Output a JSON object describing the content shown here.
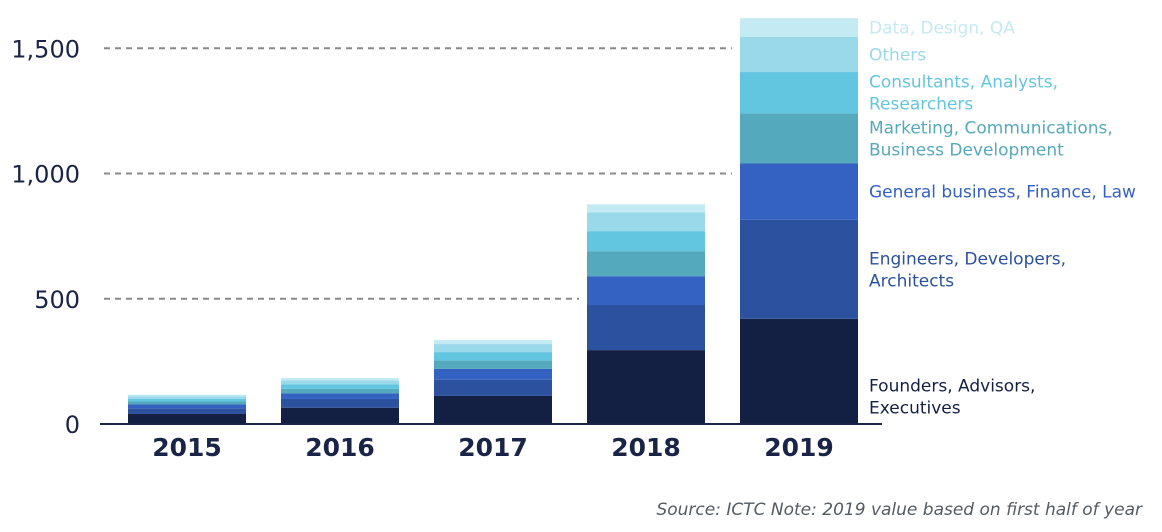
{
  "chart_data": {
    "type": "bar",
    "stacked": true,
    "categories": [
      "2015",
      "2016",
      "2017",
      "2018",
      "2019"
    ],
    "ylim": [
      0,
      1600
    ],
    "yticks": [
      {
        "value": 0,
        "label": "0"
      },
      {
        "value": 500,
        "label": "500"
      },
      {
        "value": 1000,
        "label": "1,000"
      },
      {
        "value": 1500,
        "label": "1,500"
      }
    ],
    "grid": "dashed horizontal lines at 500, 1,000 and 1,500",
    "legend_position": "right of the 2019 bar",
    "series": [
      {
        "name": "Founders, Advisors, Executives",
        "legend_lines": [
          "Founders, Advisors,",
          "Executives"
        ],
        "color": "#141f44",
        "values": [
          40,
          65,
          112,
          295,
          420
        ]
      },
      {
        "name": "Engineers, Developers, Architects",
        "legend_lines": [
          "Engineers, Developers,",
          "Architects"
        ],
        "color": "#2c519e",
        "values": [
          23,
          35,
          65,
          180,
          395
        ]
      },
      {
        "name": "General business, Finance, Law",
        "legend_lines": [
          "General business, Finance, Law"
        ],
        "color": "#3462c2",
        "values": [
          15,
          22,
          43,
          115,
          225
        ]
      },
      {
        "name": "Marketing, Communications, Business Development",
        "legend_lines": [
          "Marketing, Communications,",
          "Business Development"
        ],
        "color": "#55a9bc",
        "values": [
          12,
          18,
          34,
          100,
          200
        ]
      },
      {
        "name": "Consultants, Analysts, Researchers",
        "legend_lines": [
          "Consultants, Analysts,",
          "Researchers"
        ],
        "color": "#63c6e0",
        "values": [
          10,
          18,
          33,
          80,
          165
        ]
      },
      {
        "name": "Others",
        "legend_lines": [
          "Others"
        ],
        "color": "#99d9ea",
        "values": [
          10,
          16,
          32,
          75,
          140
        ]
      },
      {
        "name": "Data, Design, QA",
        "legend_lines": [
          "Data, Design, QA"
        ],
        "color": "#c4eaf3",
        "values": [
          7,
          10,
          16,
          32,
          75
        ]
      }
    ],
    "source": "Source: ICTC  Note: 2019 value based on first half of year"
  }
}
